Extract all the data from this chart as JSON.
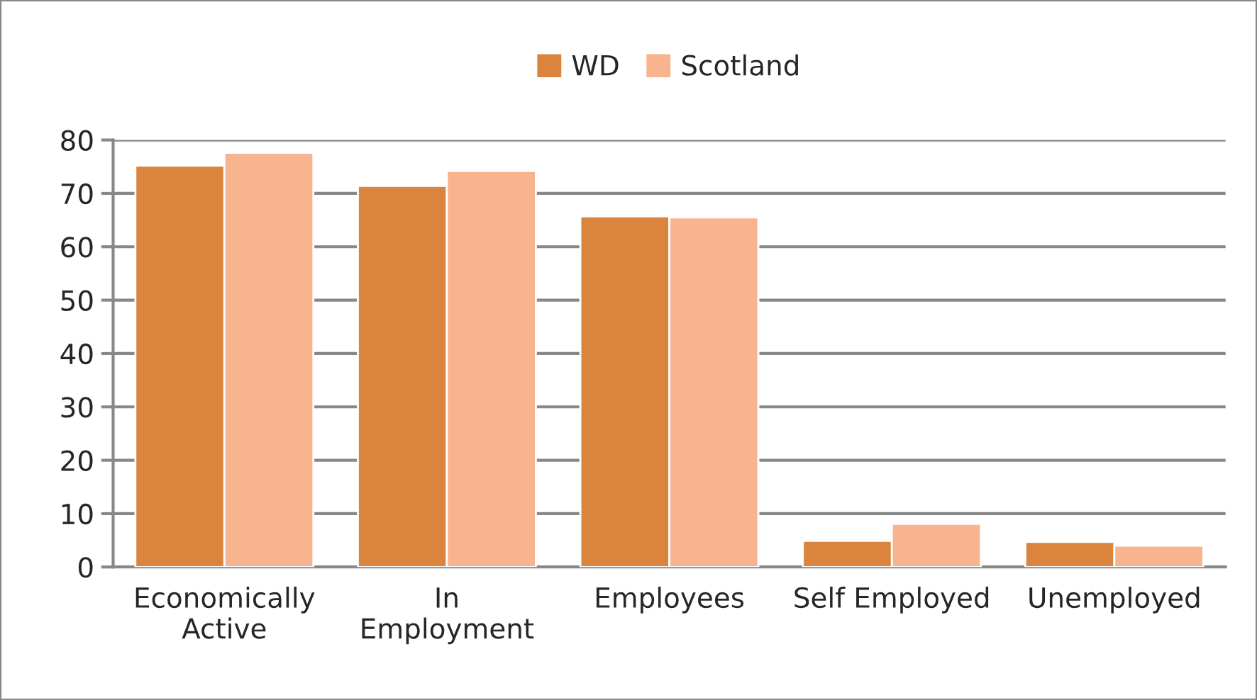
{
  "chart_data": {
    "type": "bar",
    "categories": [
      "Economically\nActive",
      "In\nEmployment",
      "Employees",
      "Self Employed",
      "Unemployed"
    ],
    "series": [
      {
        "name": "WD",
        "color": "#db843d",
        "values": [
          75.2,
          71.4,
          65.7,
          4.9,
          4.7
        ]
      },
      {
        "name": "Scotland",
        "color": "#f8b48e",
        "values": [
          77.6,
          74.2,
          65.5,
          8.1,
          4.0
        ]
      }
    ],
    "ylim": [
      0,
      80
    ],
    "yticks": [
      0,
      10,
      20,
      30,
      40,
      50,
      60,
      70,
      80
    ],
    "grid": "y",
    "legend": "top"
  }
}
